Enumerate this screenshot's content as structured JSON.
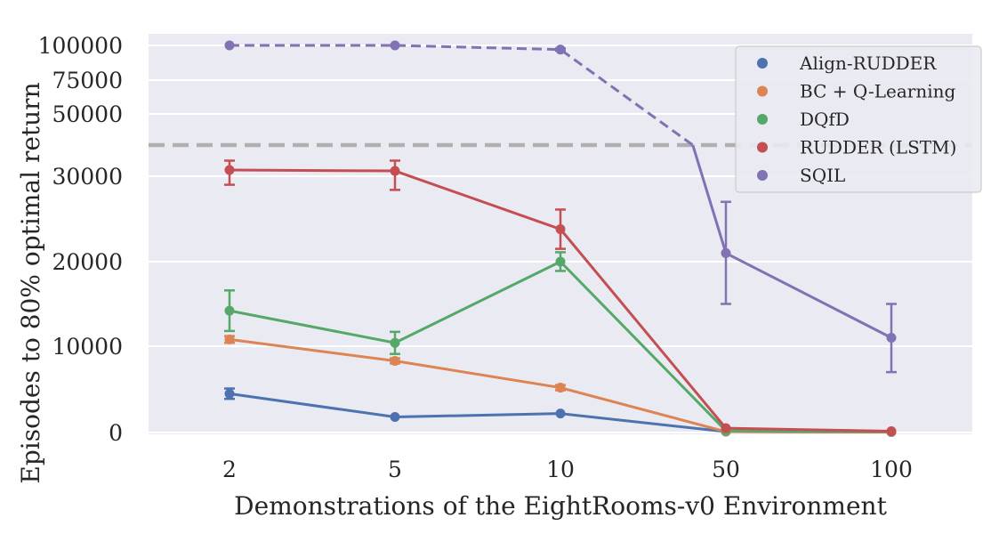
{
  "chart_data": {
    "type": "line",
    "xlabel": "Demonstrations of the EightRooms-v0 Environment",
    "ylabel": "Episodes to 80% optimal return",
    "categories": [
      "2",
      "5",
      "10",
      "50",
      "100"
    ],
    "y_ticks": [
      {
        "label": "0",
        "value": 0
      },
      {
        "label": "10000",
        "value": 10000
      },
      {
        "label": "20000",
        "value": 20000
      },
      {
        "label": "30000",
        "value": 30000
      },
      {
        "label": "50000",
        "value": 50000
      },
      {
        "label": "75000",
        "value": 75000
      },
      {
        "label": "100000",
        "value": 100000
      }
    ],
    "y_scale": "piecewise: linear 0-30000, compressed 30000-100000",
    "reference_line": {
      "value": 40000,
      "style": "dashed",
      "color": "#b0b0b0"
    },
    "grid": true,
    "legend_position": "top-right",
    "series": [
      {
        "name": "Align-RUDDER",
        "color": "#4c72b0",
        "style": "solid",
        "values": [
          4500,
          1800,
          2200,
          100,
          50
        ],
        "errors": [
          600,
          0,
          0,
          0,
          0
        ]
      },
      {
        "name": "BC + Q-Learning",
        "color": "#dd8452",
        "style": "solid",
        "values": [
          10800,
          8300,
          5200,
          100,
          50
        ],
        "errors": [
          400,
          300,
          300,
          0,
          0
        ]
      },
      {
        "name": "DQfD",
        "color": "#55a868",
        "style": "solid",
        "values": [
          14200,
          10400,
          20000,
          200,
          100
        ],
        "errors": [
          2400,
          1300,
          1100,
          0,
          0
        ]
      },
      {
        "name": "RUDDER (LSTM)",
        "color": "#c44e52",
        "style": "solid",
        "values": [
          32000,
          31700,
          23800,
          500,
          150
        ],
        "errors": [
          3000,
          3300,
          2300,
          0,
          0
        ]
      },
      {
        "name": "SQIL",
        "color": "#8172b3",
        "dashed_points": [
          {
            "x": "2",
            "y": 100000
          },
          {
            "x": "5",
            "y": 100000
          },
          {
            "x": "10",
            "y": 97000
          },
          {
            "x_fraction_between": [
              "10",
              "50"
            ],
            "x_frac": 0.8,
            "y": 40000
          }
        ],
        "solid_points": [
          {
            "x_fraction_between": [
              "10",
              "50"
            ],
            "x_frac": 0.8,
            "y": 40000
          },
          {
            "x": "50",
            "y": 21000
          },
          {
            "x": "100",
            "y": 11000
          }
        ],
        "errors_at": [
          {
            "x": "10",
            "err": 800
          },
          {
            "x": "50",
            "err": 6000
          },
          {
            "x": "100",
            "err": 4000
          }
        ]
      }
    ]
  }
}
